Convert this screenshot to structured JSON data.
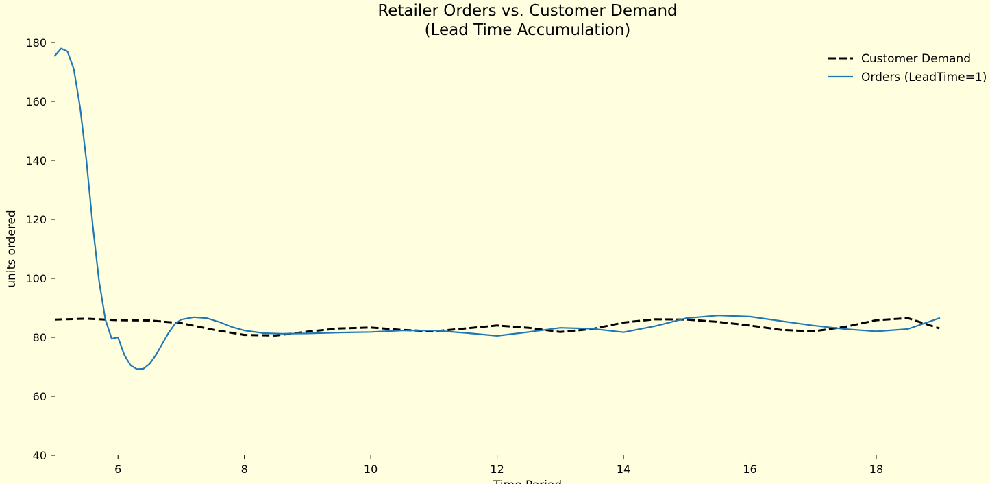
{
  "chart_data": {
    "type": "line",
    "title": "Retailer Orders vs. Customer Demand",
    "subtitle": "(Lead Time Accumulation)",
    "xlabel": "Time Period",
    "ylabel": "units ordered",
    "xlim": [
      5,
      19.8
    ],
    "ylim": [
      40,
      180
    ],
    "xticks": [
      6,
      8,
      10,
      12,
      14,
      16,
      18
    ],
    "yticks": [
      40,
      60,
      80,
      100,
      120,
      140,
      160,
      180
    ],
    "grid": false,
    "legend_position": "top-right",
    "series": [
      {
        "name": "Customer Demand",
        "color": "#000000",
        "style": "dashed",
        "x": [
          5.0,
          5.5,
          6.0,
          6.5,
          7.0,
          7.5,
          8.0,
          8.5,
          9.0,
          9.5,
          10.0,
          10.5,
          11.0,
          11.5,
          12.0,
          12.5,
          13.0,
          13.5,
          14.0,
          14.5,
          15.0,
          15.5,
          16.0,
          16.5,
          17.0,
          17.5,
          18.0,
          18.5,
          19.0
        ],
        "y": [
          86.0,
          86.3,
          85.8,
          85.7,
          84.8,
          82.6,
          80.8,
          80.6,
          81.9,
          83.0,
          83.3,
          82.5,
          82.0,
          83.0,
          84.0,
          83.2,
          81.8,
          82.8,
          85.0,
          86.1,
          86.0,
          85.2,
          84.0,
          82.5,
          82.0,
          83.5,
          85.8,
          86.5,
          83.0
        ]
      },
      {
        "name": "Orders (LeadTime=1)",
        "color": "#1f77b4",
        "style": "solid",
        "x": [
          5.0,
          5.1,
          5.2,
          5.3,
          5.4,
          5.5,
          5.6,
          5.7,
          5.8,
          5.9,
          6.0,
          6.1,
          6.2,
          6.3,
          6.4,
          6.5,
          6.6,
          6.7,
          6.8,
          6.9,
          7.0,
          7.2,
          7.4,
          7.6,
          7.8,
          8.0,
          8.3,
          8.6,
          9.0,
          9.5,
          10.0,
          10.5,
          11.0,
          11.5,
          12.0,
          12.5,
          13.0,
          13.5,
          14.0,
          14.5,
          15.0,
          15.5,
          16.0,
          16.5,
          17.0,
          17.5,
          18.0,
          18.5,
          19.0
        ],
        "y": [
          175.5,
          178.0,
          177.0,
          171.0,
          158.0,
          140.0,
          118.0,
          99.0,
          86.0,
          79.5,
          80.0,
          74.0,
          70.5,
          69.2,
          69.3,
          71.0,
          74.0,
          77.8,
          81.5,
          84.5,
          86.0,
          86.8,
          86.5,
          85.2,
          83.5,
          82.3,
          81.4,
          81.2,
          81.3,
          81.6,
          81.8,
          82.3,
          82.3,
          81.5,
          80.5,
          81.8,
          83.2,
          82.9,
          81.7,
          83.8,
          86.5,
          87.4,
          87.0,
          85.5,
          84.0,
          82.8,
          82.0,
          82.8,
          86.5
        ]
      }
    ]
  }
}
